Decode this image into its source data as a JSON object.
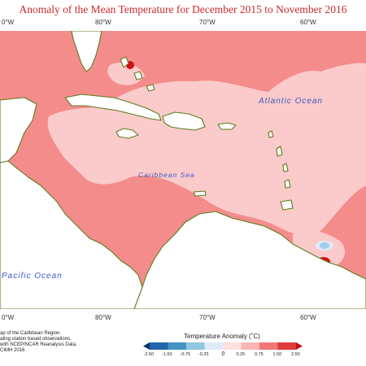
{
  "title": "Anomaly of the Mean Temperature for December 2015 to November 2016",
  "longitudes_top": [
    "0°W",
    "80°W",
    "70°W",
    "60°W"
  ],
  "longitudes_bottom": [
    "0°W",
    "80°W",
    "70°W",
    "60°W"
  ],
  "labels": {
    "atlantic": "Atlantic Ocean",
    "caribbean": "Caribbean Sea",
    "pacific": "Pacific Ocean"
  },
  "credits": [
    "ap of the Caribbean Region.",
    "ating station based observations,",
    "with NCEP/NCAR Reanalysis Data.",
    "CIMH 2016"
  ],
  "legend": {
    "title": "Temperature Anomaly (˚C)",
    "ticks": [
      "-2.50",
      "-1.50",
      "-0.75",
      "-0.25",
      "0",
      "0.25",
      "0.75",
      "1.50",
      "2.50"
    ],
    "colors": [
      "#08306b",
      "#2166ac",
      "#4393c3",
      "#92c5de",
      "#deebf7",
      "#fde0dd",
      "#f9b4b4",
      "#f07878",
      "#e03a3a",
      "#c81010"
    ]
  },
  "map_colors": {
    "warm_1": "#fbcaca",
    "warm_2": "#f48c8c",
    "warm_3": "#d40f0f",
    "cool_1": "#a7cbee",
    "land": "#ffffff",
    "coast": "#5d7a1e",
    "ocean_label": "#3a5bbf"
  }
}
